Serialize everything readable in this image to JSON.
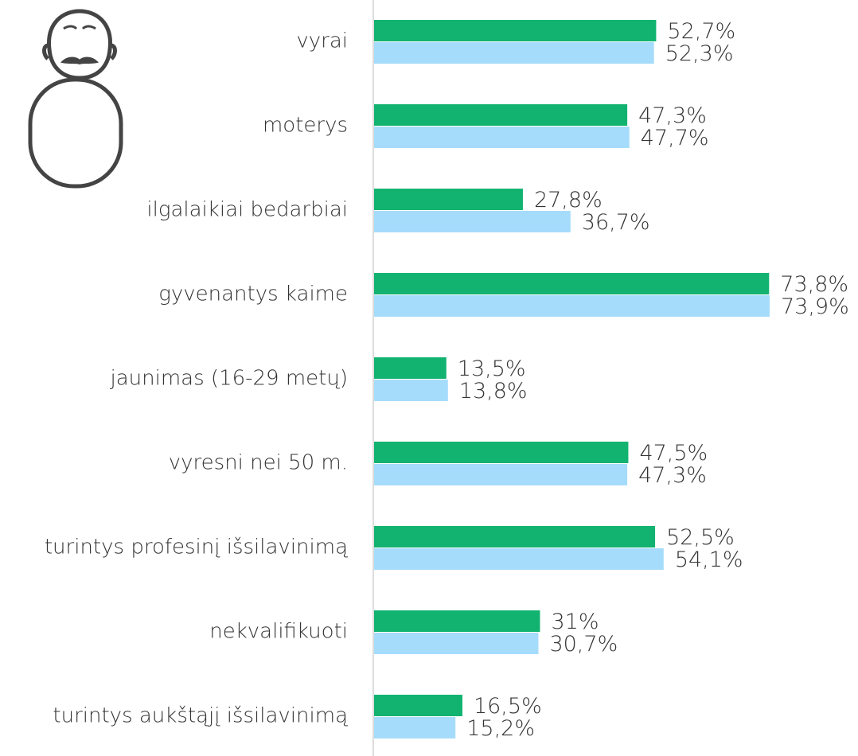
{
  "chart_data": {
    "type": "barh",
    "categories": [
      "vyrai",
      "moterys",
      "ilgalaikiai bedarbiai",
      "gyvenantys kaime",
      "jaunimas (16-29 metų)",
      "vyresni nei 50 m.",
      "turintys profesinį išsilavinimą",
      "nekvalifikuoti",
      "turintys aukštąjį išsilavinimą"
    ],
    "series": [
      {
        "color": "#12b370",
        "values": [
          52.7,
          47.3,
          27.8,
          73.8,
          13.5,
          47.5,
          52.5,
          31,
          16.5
        ],
        "value_labels": [
          "52,7%",
          "47,3%",
          "27,8%",
          "73,8%",
          "13,5%",
          "47,5%",
          "52,5%",
          "31%",
          "16,5%"
        ]
      },
      {
        "color": "#a6dcfb",
        "values": [
          52.3,
          47.7,
          36.7,
          73.9,
          13.8,
          47.3,
          54.1,
          30.7,
          15.2
        ],
        "value_labels": [
          "52,3%",
          "47,7%",
          "36,7%",
          "73,9%",
          "13,8%",
          "47,3%",
          "54,1%",
          "30,7%",
          "15,2%"
        ]
      }
    ]
  }
}
